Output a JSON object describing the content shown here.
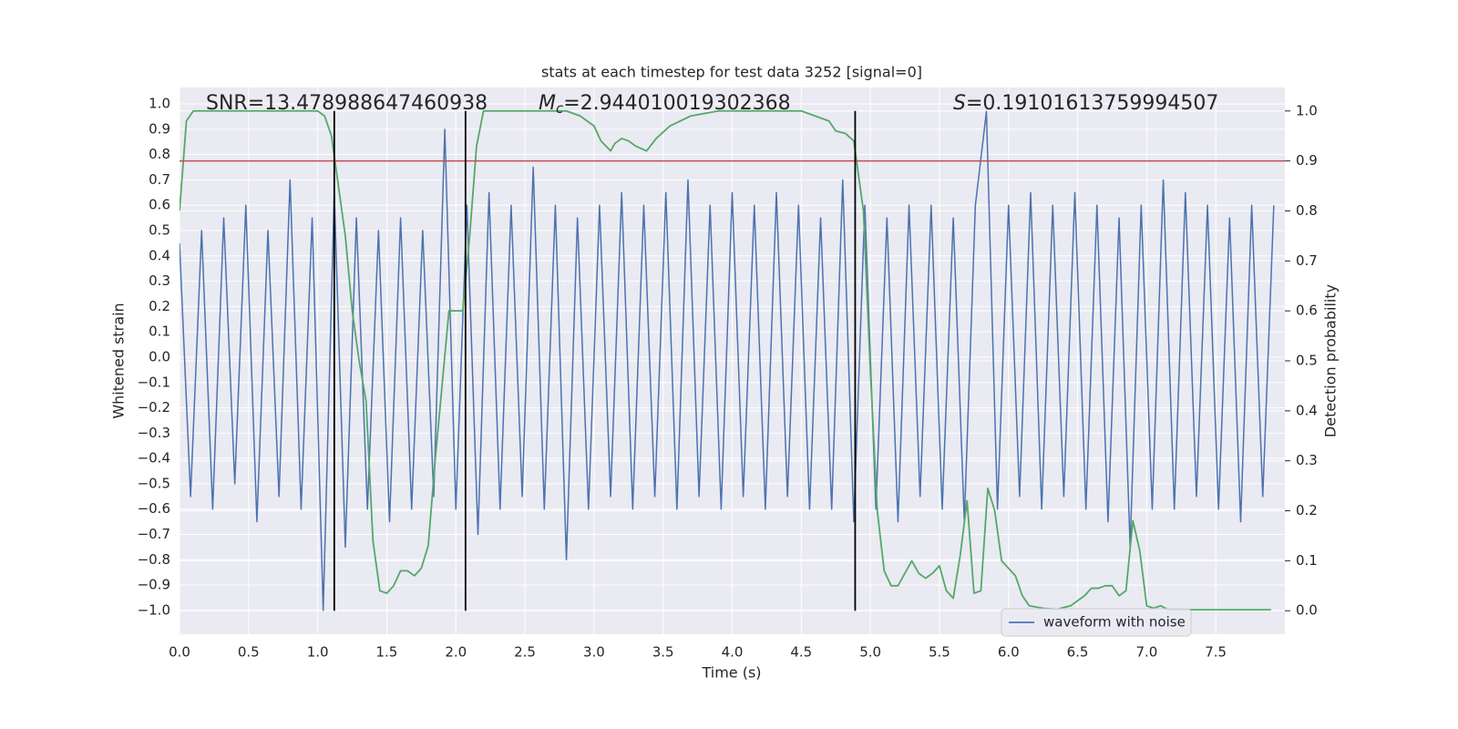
{
  "chart_data": {
    "type": "line",
    "title": "stats at each timestep for test data 3252 [signal=0]",
    "xlabel": "Time (s)",
    "ylabel": "Whitened strain",
    "y2label": "Detection probability",
    "xlim": [
      0,
      8
    ],
    "ylim": [
      -1.094,
      1.065
    ],
    "y2lim": [
      -0.047,
      1.047
    ],
    "xticks": [
      {
        "value": 0,
        "label": "0.0"
      },
      {
        "value": 0.5,
        "label": "0.5"
      },
      {
        "value": 1,
        "label": "1.0"
      },
      {
        "value": 1.5,
        "label": "1.5"
      },
      {
        "value": 2,
        "label": "2.0"
      },
      {
        "value": 2.5,
        "label": "2.5"
      },
      {
        "value": 3,
        "label": "3.0"
      },
      {
        "value": 3.5,
        "label": "3.5"
      },
      {
        "value": 4,
        "label": "4.0"
      },
      {
        "value": 4.5,
        "label": "4.5"
      },
      {
        "value": 5,
        "label": "5.0"
      },
      {
        "value": 5.5,
        "label": "5.5"
      },
      {
        "value": 6,
        "label": "6.0"
      },
      {
        "value": 6.5,
        "label": "6.5"
      },
      {
        "value": 7,
        "label": "7.0"
      },
      {
        "value": 7.5,
        "label": "7.5"
      }
    ],
    "yticks": [
      {
        "value": 1,
        "label": "1.0"
      },
      {
        "value": 0.9,
        "label": "0.9"
      },
      {
        "value": 0.8,
        "label": "0.8"
      },
      {
        "value": 0.7,
        "label": "0.7"
      },
      {
        "value": 0.6,
        "label": "0.6"
      },
      {
        "value": 0.5,
        "label": "0.5"
      },
      {
        "value": 0.4,
        "label": "0.4"
      },
      {
        "value": 0.3,
        "label": "0.3"
      },
      {
        "value": 0.2,
        "label": "0.2"
      },
      {
        "value": 0.1,
        "label": "0.1"
      },
      {
        "value": 0,
        "label": "0.0"
      },
      {
        "value": -0.1,
        "label": "−0.1"
      },
      {
        "value": -0.2,
        "label": "−0.2"
      },
      {
        "value": -0.3,
        "label": "−0.3"
      },
      {
        "value": -0.4,
        "label": "−0.4"
      },
      {
        "value": -0.5,
        "label": "−0.5"
      },
      {
        "value": -0.6,
        "label": "−0.6"
      },
      {
        "value": -0.7,
        "label": "−0.7"
      },
      {
        "value": -0.8,
        "label": "−0.8"
      },
      {
        "value": -0.9,
        "label": "−0.9"
      },
      {
        "value": -1,
        "label": "−1.0"
      }
    ],
    "y2ticks": [
      {
        "value": 0,
        "label": "0.0"
      },
      {
        "value": 0.1,
        "label": "0.1"
      },
      {
        "value": 0.2,
        "label": "0.2"
      },
      {
        "value": 0.3,
        "label": "0.3"
      },
      {
        "value": 0.4,
        "label": "0.4"
      },
      {
        "value": 0.5,
        "label": "0.5"
      },
      {
        "value": 0.6,
        "label": "0.6"
      },
      {
        "value": 0.7,
        "label": "0.7"
      },
      {
        "value": 0.8,
        "label": "0.8"
      },
      {
        "value": 0.9,
        "label": "0.9"
      },
      {
        "value": 1,
        "label": "1.0"
      }
    ],
    "grid": true,
    "legend": "lower right",
    "series": [
      {
        "name": "waveform with noise",
        "color": "#4c72b0",
        "x": [
          0,
          0.08,
          0.16,
          0.24,
          0.32,
          0.4,
          0.48,
          0.56,
          0.64,
          0.72,
          0.8,
          0.88,
          0.96,
          1.04,
          1.12,
          1.2,
          1.28,
          1.36,
          1.44,
          1.52,
          1.6,
          1.68,
          1.76,
          1.84,
          1.92,
          2,
          2.08,
          2.16,
          2.24,
          2.32,
          2.4,
          2.48,
          2.56,
          2.64,
          2.72,
          2.8,
          2.88,
          2.96,
          3.04,
          3.12,
          3.2,
          3.28,
          3.36,
          3.44,
          3.52,
          3.6,
          3.68,
          3.76,
          3.84,
          3.92,
          4,
          4.08,
          4.16,
          4.24,
          4.32,
          4.4,
          4.48,
          4.56,
          4.64,
          4.72,
          4.8,
          4.88,
          4.96,
          5.04,
          5.12,
          5.2,
          5.28,
          5.36,
          5.44,
          5.52,
          5.6,
          5.68,
          5.76,
          5.84,
          5.92,
          6,
          6.08,
          6.16,
          6.24,
          6.32,
          6.4,
          6.48,
          6.56,
          6.64,
          6.72,
          6.8,
          6.88,
          6.96,
          7.04,
          7.12,
          7.2,
          7.28,
          7.36,
          7.44,
          7.52,
          7.6,
          7.68,
          7.76,
          7.84,
          7.92
        ],
        "values": [
          0.45,
          -0.55,
          0.5,
          -0.6,
          0.55,
          -0.5,
          0.6,
          -0.65,
          0.5,
          -0.55,
          0.7,
          -0.6,
          0.55,
          -1.0,
          0.65,
          -0.75,
          0.55,
          -0.6,
          0.5,
          -0.65,
          0.55,
          -0.6,
          0.5,
          -0.55,
          0.9,
          -0.6,
          0.6,
          -0.7,
          0.65,
          -0.6,
          0.6,
          -0.55,
          0.75,
          -0.6,
          0.6,
          -0.8,
          0.55,
          -0.6,
          0.6,
          -0.55,
          0.65,
          -0.6,
          0.6,
          -0.55,
          0.65,
          -0.6,
          0.7,
          -0.55,
          0.6,
          -0.6,
          0.65,
          -0.55,
          0.6,
          -0.6,
          0.65,
          -0.55,
          0.6,
          -0.6,
          0.55,
          -0.6,
          0.7,
          -0.65,
          0.6,
          -0.6,
          0.55,
          -0.65,
          0.6,
          -0.55,
          0.6,
          -0.6,
          0.55,
          -0.65,
          0.6,
          0.97,
          -0.6,
          0.6,
          -0.55,
          0.65,
          -0.6,
          0.6,
          -0.55,
          0.65,
          -0.6,
          0.6,
          -0.65,
          0.55,
          -0.75,
          0.6,
          -0.6,
          0.7,
          -0.6,
          0.65,
          -0.55,
          0.6,
          -0.6,
          0.55,
          -0.65,
          0.6,
          -0.55,
          0.6
        ]
      },
      {
        "color": "#55a868",
        "axis": "y2",
        "x": [
          0,
          0.05,
          0.1,
          0.2,
          0.5,
          0.9,
          1,
          1.05,
          1.1,
          1.15,
          1.2,
          1.25,
          1.3,
          1.35,
          1.4,
          1.45,
          1.5,
          1.55,
          1.6,
          1.65,
          1.7,
          1.75,
          1.8,
          1.85,
          1.9,
          1.95,
          2,
          2.05,
          2.1,
          2.15,
          2.2,
          2.3,
          2.5,
          2.8,
          2.9,
          3,
          3.05,
          3.12,
          3.15,
          3.2,
          3.25,
          3.3,
          3.38,
          3.45,
          3.55,
          3.7,
          3.9,
          4.2,
          4.5,
          4.6,
          4.7,
          4.75,
          4.82,
          4.88,
          4.95,
          5,
          5.05,
          5.1,
          5.15,
          5.2,
          5.25,
          5.3,
          5.35,
          5.4,
          5.45,
          5.5,
          5.55,
          5.6,
          5.65,
          5.7,
          5.75,
          5.8,
          5.85,
          5.9,
          5.95,
          6,
          6.05,
          6.1,
          6.15,
          6.25,
          6.35,
          6.45,
          6.55,
          6.6,
          6.65,
          6.7,
          6.75,
          6.8,
          6.85,
          6.9,
          6.95,
          7,
          7.05,
          7.1,
          7.15,
          7.25,
          7.4,
          7.9
        ],
        "values": [
          0.8,
          0.98,
          1,
          1,
          1,
          1,
          1,
          0.99,
          0.95,
          0.85,
          0.75,
          0.6,
          0.5,
          0.42,
          0.14,
          0.04,
          0.035,
          0.05,
          0.08,
          0.08,
          0.07,
          0.085,
          0.13,
          0.3,
          0.45,
          0.6,
          0.6,
          0.6,
          0.75,
          0.93,
          1,
          1,
          1,
          1,
          0.99,
          0.97,
          0.94,
          0.92,
          0.935,
          0.945,
          0.94,
          0.93,
          0.92,
          0.945,
          0.97,
          0.99,
          1,
          1,
          1,
          0.99,
          0.98,
          0.96,
          0.955,
          0.94,
          0.8,
          0.48,
          0.2,
          0.08,
          0.05,
          0.05,
          0.075,
          0.1,
          0.075,
          0.065,
          0.075,
          0.09,
          0.04,
          0.025,
          0.11,
          0.22,
          0.035,
          0.04,
          0.245,
          0.2,
          0.1,
          0.085,
          0.07,
          0.03,
          0.01,
          0.005,
          0.003,
          0.01,
          0.03,
          0.045,
          0.045,
          0.05,
          0.05,
          0.03,
          0.04,
          0.18,
          0.12,
          0.01,
          0.005,
          0.01,
          0.003,
          0.002,
          0.002,
          0.002
        ]
      }
    ],
    "threshold": {
      "value": 0.9,
      "axis": "y2",
      "color": "#c44e52"
    },
    "vlines": {
      "x": [
        1.12,
        2.07,
        4.89
      ],
      "color": "#000000"
    },
    "annotations": {
      "snr": {
        "text": "SNR=13.478988647460938"
      },
      "mc": {
        "symbol": "M",
        "subscript": "c",
        "text": "=2.944010019302368"
      },
      "s": {
        "symbol": "S",
        "text": "=0.19101613759994507"
      }
    }
  }
}
